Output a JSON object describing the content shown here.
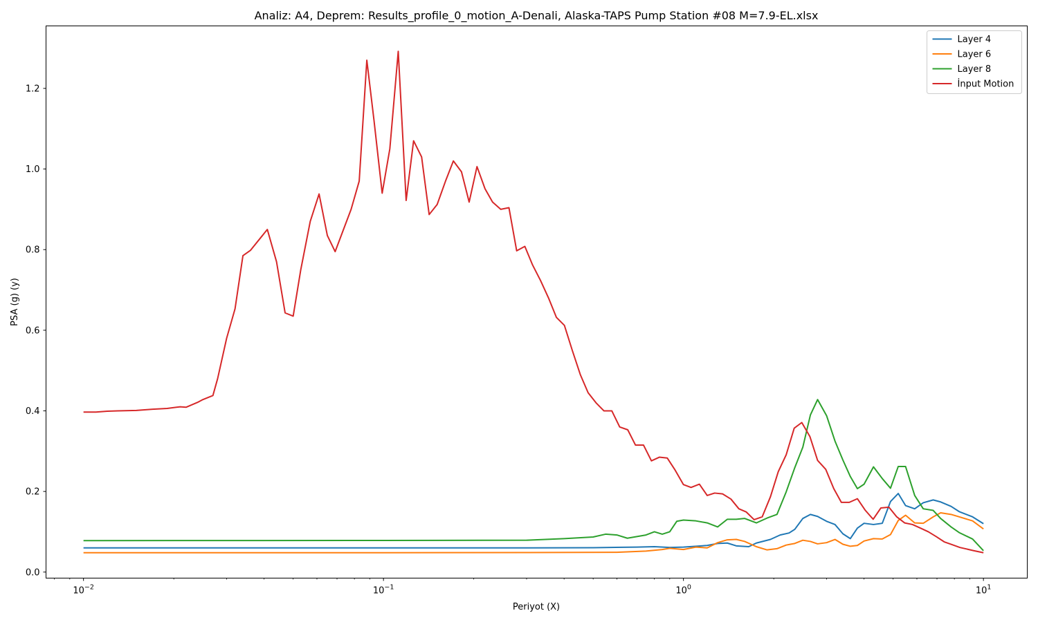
{
  "chart_data": {
    "type": "line",
    "title": "Analiz: A4, Deprem: Results_profile_0_motion_A-Denali, Alaska-TAPS Pump Station #08 M=7.9-EL.xlsx",
    "xlabel": "Periyot (X)",
    "ylabel": "PSA (g) (y)",
    "xscale": "log",
    "xlim": [
      0.0075,
      14
    ],
    "ylim": [
      -0.015,
      1.355
    ],
    "grid": false,
    "legend_position": "top-right",
    "x_ticks": [
      {
        "value": 0.01,
        "base": "10",
        "exp": "−2"
      },
      {
        "value": 0.1,
        "base": "10",
        "exp": "−1"
      },
      {
        "value": 1,
        "base": "10",
        "exp": "0"
      },
      {
        "value": 10,
        "base": "10",
        "exp": "1"
      }
    ],
    "y_ticks": [
      {
        "value": 0.0,
        "label": "0.0"
      },
      {
        "value": 0.2,
        "label": "0.2"
      },
      {
        "value": 0.4,
        "label": "0.4"
      },
      {
        "value": 0.6,
        "label": "0.6"
      },
      {
        "value": 0.8,
        "label": "0.8"
      },
      {
        "value": 1.0,
        "label": "1.0"
      },
      {
        "value": 1.2,
        "label": "1.2"
      }
    ],
    "series": [
      {
        "name": "Layer 4",
        "color": "#1f77b4",
        "points": [
          [
            0.01,
            0.06
          ],
          [
            0.05,
            0.06
          ],
          [
            0.1,
            0.06
          ],
          [
            0.3,
            0.06
          ],
          [
            0.5,
            0.0605
          ],
          [
            0.7,
            0.062
          ],
          [
            0.8,
            0.063
          ],
          [
            0.9,
            0.061
          ],
          [
            1.0,
            0.062
          ],
          [
            1.2,
            0.066
          ],
          [
            1.3,
            0.071
          ],
          [
            1.4,
            0.072
          ],
          [
            1.5,
            0.065
          ],
          [
            1.65,
            0.063
          ],
          [
            1.75,
            0.072
          ],
          [
            1.95,
            0.081
          ],
          [
            2.1,
            0.092
          ],
          [
            2.25,
            0.097
          ],
          [
            2.35,
            0.106
          ],
          [
            2.5,
            0.133
          ],
          [
            2.65,
            0.143
          ],
          [
            2.8,
            0.138
          ],
          [
            3.0,
            0.126
          ],
          [
            3.2,
            0.118
          ],
          [
            3.4,
            0.095
          ],
          [
            3.6,
            0.083
          ],
          [
            3.8,
            0.109
          ],
          [
            4.0,
            0.121
          ],
          [
            4.3,
            0.118
          ],
          [
            4.6,
            0.121
          ],
          [
            4.9,
            0.175
          ],
          [
            5.2,
            0.195
          ],
          [
            5.5,
            0.165
          ],
          [
            5.9,
            0.157
          ],
          [
            6.3,
            0.172
          ],
          [
            6.8,
            0.179
          ],
          [
            7.2,
            0.174
          ],
          [
            7.8,
            0.163
          ],
          [
            8.3,
            0.15
          ],
          [
            9.2,
            0.137
          ],
          [
            10,
            0.12
          ]
        ]
      },
      {
        "name": "Layer 6",
        "color": "#ff7f0e",
        "points": [
          [
            0.01,
            0.048
          ],
          [
            0.1,
            0.048
          ],
          [
            0.3,
            0.0485
          ],
          [
            0.6,
            0.049
          ],
          [
            0.75,
            0.052
          ],
          [
            0.85,
            0.056
          ],
          [
            0.9,
            0.059
          ],
          [
            1.0,
            0.056
          ],
          [
            1.1,
            0.062
          ],
          [
            1.2,
            0.06
          ],
          [
            1.3,
            0.073
          ],
          [
            1.4,
            0.08
          ],
          [
            1.5,
            0.081
          ],
          [
            1.6,
            0.076
          ],
          [
            1.75,
            0.063
          ],
          [
            1.9,
            0.055
          ],
          [
            2.05,
            0.058
          ],
          [
            2.2,
            0.067
          ],
          [
            2.35,
            0.071
          ],
          [
            2.5,
            0.079
          ],
          [
            2.65,
            0.076
          ],
          [
            2.8,
            0.07
          ],
          [
            3.0,
            0.073
          ],
          [
            3.2,
            0.081
          ],
          [
            3.4,
            0.069
          ],
          [
            3.6,
            0.064
          ],
          [
            3.8,
            0.066
          ],
          [
            4.0,
            0.077
          ],
          [
            4.3,
            0.083
          ],
          [
            4.6,
            0.082
          ],
          [
            4.9,
            0.093
          ],
          [
            5.2,
            0.128
          ],
          [
            5.5,
            0.141
          ],
          [
            5.9,
            0.122
          ],
          [
            6.3,
            0.121
          ],
          [
            6.8,
            0.137
          ],
          [
            7.2,
            0.147
          ],
          [
            7.8,
            0.143
          ],
          [
            8.3,
            0.137
          ],
          [
            9.2,
            0.127
          ],
          [
            10,
            0.107
          ]
        ]
      },
      {
        "name": "Layer 8",
        "color": "#2ca02c",
        "points": [
          [
            0.01,
            0.078
          ],
          [
            0.1,
            0.0785
          ],
          [
            0.3,
            0.079
          ],
          [
            0.4,
            0.083
          ],
          [
            0.5,
            0.087
          ],
          [
            0.55,
            0.094
          ],
          [
            0.6,
            0.092
          ],
          [
            0.65,
            0.084
          ],
          [
            0.75,
            0.092
          ],
          [
            0.8,
            0.1
          ],
          [
            0.85,
            0.094
          ],
          [
            0.9,
            0.1
          ],
          [
            0.95,
            0.126
          ],
          [
            1.0,
            0.129
          ],
          [
            1.1,
            0.127
          ],
          [
            1.2,
            0.122
          ],
          [
            1.3,
            0.112
          ],
          [
            1.4,
            0.131
          ],
          [
            1.5,
            0.131
          ],
          [
            1.6,
            0.133
          ],
          [
            1.75,
            0.122
          ],
          [
            1.9,
            0.134
          ],
          [
            2.05,
            0.143
          ],
          [
            2.2,
            0.199
          ],
          [
            2.35,
            0.259
          ],
          [
            2.5,
            0.31
          ],
          [
            2.65,
            0.39
          ],
          [
            2.8,
            0.428
          ],
          [
            3.0,
            0.388
          ],
          [
            3.2,
            0.325
          ],
          [
            3.4,
            0.278
          ],
          [
            3.6,
            0.237
          ],
          [
            3.8,
            0.207
          ],
          [
            4.0,
            0.218
          ],
          [
            4.3,
            0.261
          ],
          [
            4.6,
            0.232
          ],
          [
            4.9,
            0.208
          ],
          [
            5.2,
            0.262
          ],
          [
            5.5,
            0.262
          ],
          [
            5.9,
            0.19
          ],
          [
            6.3,
            0.157
          ],
          [
            6.8,
            0.153
          ],
          [
            7.2,
            0.133
          ],
          [
            7.8,
            0.112
          ],
          [
            8.3,
            0.098
          ],
          [
            9.2,
            0.082
          ],
          [
            10,
            0.053
          ]
        ]
      },
      {
        "name": "İnput Motion",
        "color": "#d62728",
        "points": [
          [
            0.01,
            0.397
          ],
          [
            0.011,
            0.397
          ],
          [
            0.012,
            0.399
          ],
          [
            0.013,
            0.4
          ],
          [
            0.015,
            0.401
          ],
          [
            0.017,
            0.404
          ],
          [
            0.019,
            0.406
          ],
          [
            0.021,
            0.41
          ],
          [
            0.022,
            0.409
          ],
          [
            0.024,
            0.421
          ],
          [
            0.025,
            0.428
          ],
          [
            0.027,
            0.438
          ],
          [
            0.028,
            0.48
          ],
          [
            0.03,
            0.58
          ],
          [
            0.032,
            0.653
          ],
          [
            0.034,
            0.785
          ],
          [
            0.036,
            0.798
          ],
          [
            0.039,
            0.83
          ],
          [
            0.041,
            0.85
          ],
          [
            0.044,
            0.77
          ],
          [
            0.047,
            0.643
          ],
          [
            0.05,
            0.635
          ],
          [
            0.053,
            0.75
          ],
          [
            0.057,
            0.87
          ],
          [
            0.061,
            0.938
          ],
          [
            0.065,
            0.835
          ],
          [
            0.069,
            0.795
          ],
          [
            0.074,
            0.855
          ],
          [
            0.078,
            0.9
          ],
          [
            0.083,
            0.97
          ],
          [
            0.088,
            1.27
          ],
          [
            0.093,
            1.12
          ],
          [
            0.099,
            0.94
          ],
          [
            0.105,
            1.05
          ],
          [
            0.112,
            1.292
          ],
          [
            0.119,
            0.922
          ],
          [
            0.126,
            1.07
          ],
          [
            0.134,
            1.03
          ],
          [
            0.142,
            0.887
          ],
          [
            0.151,
            0.912
          ],
          [
            0.161,
            0.97
          ],
          [
            0.171,
            1.02
          ],
          [
            0.182,
            0.993
          ],
          [
            0.193,
            0.918
          ],
          [
            0.205,
            1.006
          ],
          [
            0.218,
            0.951
          ],
          [
            0.231,
            0.918
          ],
          [
            0.246,
            0.9
          ],
          [
            0.262,
            0.904
          ],
          [
            0.278,
            0.797
          ],
          [
            0.296,
            0.808
          ],
          [
            0.314,
            0.762
          ],
          [
            0.334,
            0.723
          ],
          [
            0.355,
            0.68
          ],
          [
            0.377,
            0.632
          ],
          [
            0.401,
            0.612
          ],
          [
            0.426,
            0.55
          ],
          [
            0.453,
            0.49
          ],
          [
            0.481,
            0.445
          ],
          [
            0.511,
            0.42
          ],
          [
            0.543,
            0.4
          ],
          [
            0.577,
            0.4
          ],
          [
            0.613,
            0.36
          ],
          [
            0.652,
            0.353
          ],
          [
            0.692,
            0.315
          ],
          [
            0.736,
            0.315
          ],
          [
            0.782,
            0.276
          ],
          [
            0.831,
            0.285
          ],
          [
            0.883,
            0.283
          ],
          [
            0.938,
            0.253
          ],
          [
            1.0,
            0.217
          ],
          [
            1.06,
            0.21
          ],
          [
            1.13,
            0.218
          ],
          [
            1.2,
            0.19
          ],
          [
            1.27,
            0.196
          ],
          [
            1.35,
            0.194
          ],
          [
            1.44,
            0.181
          ],
          [
            1.53,
            0.157
          ],
          [
            1.62,
            0.149
          ],
          [
            1.72,
            0.13
          ],
          [
            1.83,
            0.137
          ],
          [
            1.95,
            0.187
          ],
          [
            2.07,
            0.249
          ],
          [
            2.2,
            0.291
          ],
          [
            2.34,
            0.357
          ],
          [
            2.48,
            0.371
          ],
          [
            2.64,
            0.336
          ],
          [
            2.8,
            0.277
          ],
          [
            2.98,
            0.255
          ],
          [
            3.17,
            0.207
          ],
          [
            3.36,
            0.173
          ],
          [
            3.57,
            0.173
          ],
          [
            3.8,
            0.182
          ],
          [
            4.04,
            0.153
          ],
          [
            4.29,
            0.131
          ],
          [
            4.55,
            0.159
          ],
          [
            4.84,
            0.161
          ],
          [
            5.14,
            0.137
          ],
          [
            5.46,
            0.122
          ],
          [
            5.8,
            0.118
          ],
          [
            6.17,
            0.109
          ],
          [
            6.55,
            0.1
          ],
          [
            6.96,
            0.088
          ],
          [
            7.4,
            0.075
          ],
          [
            7.86,
            0.068
          ],
          [
            8.35,
            0.061
          ],
          [
            9.3,
            0.053
          ],
          [
            10,
            0.048
          ]
        ]
      }
    ]
  }
}
